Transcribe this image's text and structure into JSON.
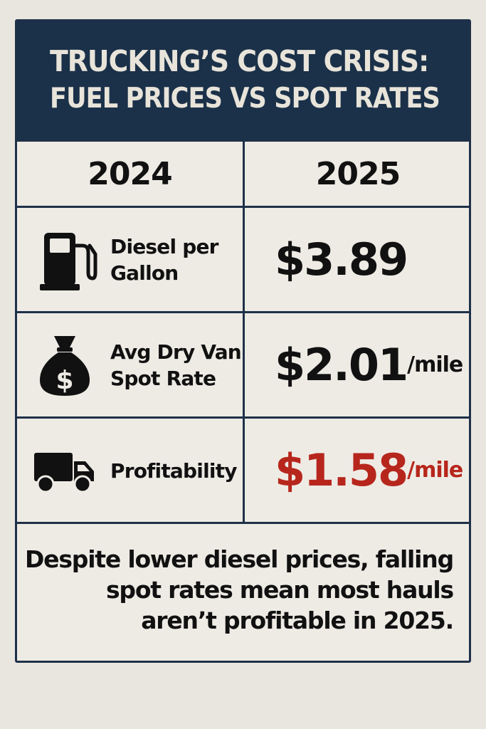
{
  "header": {
    "title_line1": "TRUCKING’S COST CRISIS:",
    "title_line2": "FUEL PRICES VS SPOT RATES"
  },
  "columns": [
    "2024",
    "2025"
  ],
  "rows": [
    {
      "icon": "fuel-pump-icon",
      "label_line1": "Diesel per",
      "label_line2": "Gallon",
      "value": "$3.89",
      "unit": ""
    },
    {
      "icon": "money-bag-icon",
      "label_line1": "Avg Dry Van",
      "label_line2": "Spot Rate",
      "value": "$2.01",
      "unit": "/mile"
    },
    {
      "icon": "truck-icon",
      "label_line1": "Profitability",
      "label_line2": "",
      "value": "$1.58",
      "unit": "/mile",
      "value_color": "#b7261c"
    }
  ],
  "note": {
    "line1": "Despite lower diesel prices, falling",
    "line2": "spot rates mean most hauls",
    "line3": "aren’t profitable in 2025."
  },
  "colors": {
    "header_bg": "#1b3149",
    "border": "#1e3148",
    "background": "#eeebe5",
    "accent_red": "#b7261c"
  }
}
